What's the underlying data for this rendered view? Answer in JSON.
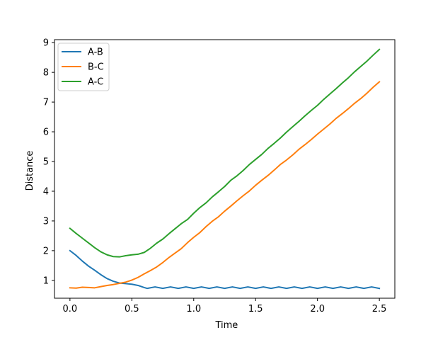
{
  "chart_data": {
    "type": "line",
    "title": "",
    "xlabel": "Time",
    "ylabel": "Distance",
    "xlim": [
      -0.125,
      2.625
    ],
    "ylim": [
      0.4,
      9.1
    ],
    "xticks": [
      0.0,
      0.5,
      1.0,
      1.5,
      2.0,
      2.5
    ],
    "xtick_labels": [
      "0.0",
      "0.5",
      "1.0",
      "1.5",
      "2.0",
      "2.5"
    ],
    "yticks": [
      1,
      2,
      3,
      4,
      5,
      6,
      7,
      8,
      9
    ],
    "ytick_labels": [
      "1",
      "2",
      "3",
      "4",
      "5",
      "6",
      "7",
      "8",
      "9"
    ],
    "grid": false,
    "legend_position": "upper-left",
    "series": [
      {
        "name": "A-B",
        "color": "#1f77b4",
        "x": [
          0.0,
          0.05,
          0.1,
          0.15,
          0.2,
          0.25,
          0.3,
          0.35,
          0.4,
          0.45,
          0.5,
          0.55,
          0.6,
          0.625,
          0.6875,
          0.75,
          0.8125,
          0.875,
          0.9375,
          1.0,
          1.0625,
          1.125,
          1.1875,
          1.25,
          1.3125,
          1.375,
          1.4375,
          1.5,
          1.5625,
          1.625,
          1.6875,
          1.75,
          1.8125,
          1.875,
          1.9375,
          2.0,
          2.0625,
          2.125,
          2.1875,
          2.25,
          2.3125,
          2.375,
          2.4375,
          2.5
        ],
        "y": [
          2.0,
          1.84,
          1.65,
          1.48,
          1.34,
          1.19,
          1.06,
          0.97,
          0.91,
          0.89,
          0.87,
          0.83,
          0.76,
          0.73,
          0.78,
          0.73,
          0.78,
          0.73,
          0.78,
          0.73,
          0.78,
          0.73,
          0.78,
          0.73,
          0.78,
          0.73,
          0.78,
          0.73,
          0.78,
          0.73,
          0.78,
          0.73,
          0.78,
          0.73,
          0.78,
          0.73,
          0.78,
          0.73,
          0.78,
          0.73,
          0.78,
          0.73,
          0.78,
          0.73
        ]
      },
      {
        "name": "B-C",
        "color": "#ff7f0e",
        "x": [
          0.0,
          0.05,
          0.1,
          0.15,
          0.2,
          0.25,
          0.3,
          0.35,
          0.4,
          0.45,
          0.5,
          0.55,
          0.6,
          0.65,
          0.7,
          0.75,
          0.8,
          0.85,
          0.9,
          0.95,
          1.0,
          1.05,
          1.1,
          1.15,
          1.2,
          1.25,
          1.3,
          1.35,
          1.4,
          1.45,
          1.5,
          1.55,
          1.6,
          1.65,
          1.7,
          1.75,
          1.8,
          1.85,
          1.9,
          1.95,
          2.0,
          2.05,
          2.1,
          2.15,
          2.2,
          2.25,
          2.3,
          2.35,
          2.4,
          2.45,
          2.5
        ],
        "y": [
          0.75,
          0.74,
          0.77,
          0.76,
          0.75,
          0.79,
          0.83,
          0.86,
          0.9,
          0.94,
          1.01,
          1.1,
          1.22,
          1.33,
          1.45,
          1.6,
          1.77,
          1.92,
          2.07,
          2.27,
          2.45,
          2.61,
          2.81,
          2.99,
          3.14,
          3.33,
          3.5,
          3.68,
          3.85,
          4.01,
          4.2,
          4.37,
          4.53,
          4.71,
          4.9,
          5.05,
          5.22,
          5.41,
          5.57,
          5.74,
          5.92,
          6.09,
          6.26,
          6.45,
          6.61,
          6.78,
          6.96,
          7.12,
          7.3,
          7.5,
          7.68
        ]
      },
      {
        "name": "A-C",
        "color": "#2ca02c",
        "x": [
          0.0,
          0.05,
          0.1,
          0.15,
          0.2,
          0.25,
          0.3,
          0.35,
          0.4,
          0.45,
          0.5,
          0.55,
          0.6,
          0.65,
          0.7,
          0.75,
          0.8,
          0.85,
          0.9,
          0.95,
          1.0,
          1.05,
          1.1,
          1.15,
          1.2,
          1.25,
          1.3,
          1.35,
          1.4,
          1.45,
          1.5,
          1.55,
          1.6,
          1.65,
          1.7,
          1.75,
          1.8,
          1.85,
          1.9,
          1.95,
          2.0,
          2.05,
          2.1,
          2.15,
          2.2,
          2.25,
          2.3,
          2.35,
          2.4,
          2.45,
          2.5
        ],
        "y": [
          2.75,
          2.58,
          2.42,
          2.26,
          2.1,
          1.96,
          1.86,
          1.8,
          1.79,
          1.83,
          1.86,
          1.88,
          1.94,
          2.08,
          2.25,
          2.39,
          2.57,
          2.74,
          2.91,
          3.05,
          3.26,
          3.45,
          3.61,
          3.81,
          3.98,
          4.16,
          4.37,
          4.52,
          4.7,
          4.9,
          5.07,
          5.24,
          5.44,
          5.61,
          5.79,
          5.99,
          6.17,
          6.35,
          6.54,
          6.72,
          6.89,
          7.09,
          7.27,
          7.45,
          7.64,
          7.82,
          8.02,
          8.2,
          8.38,
          8.58,
          8.77
        ]
      }
    ]
  }
}
